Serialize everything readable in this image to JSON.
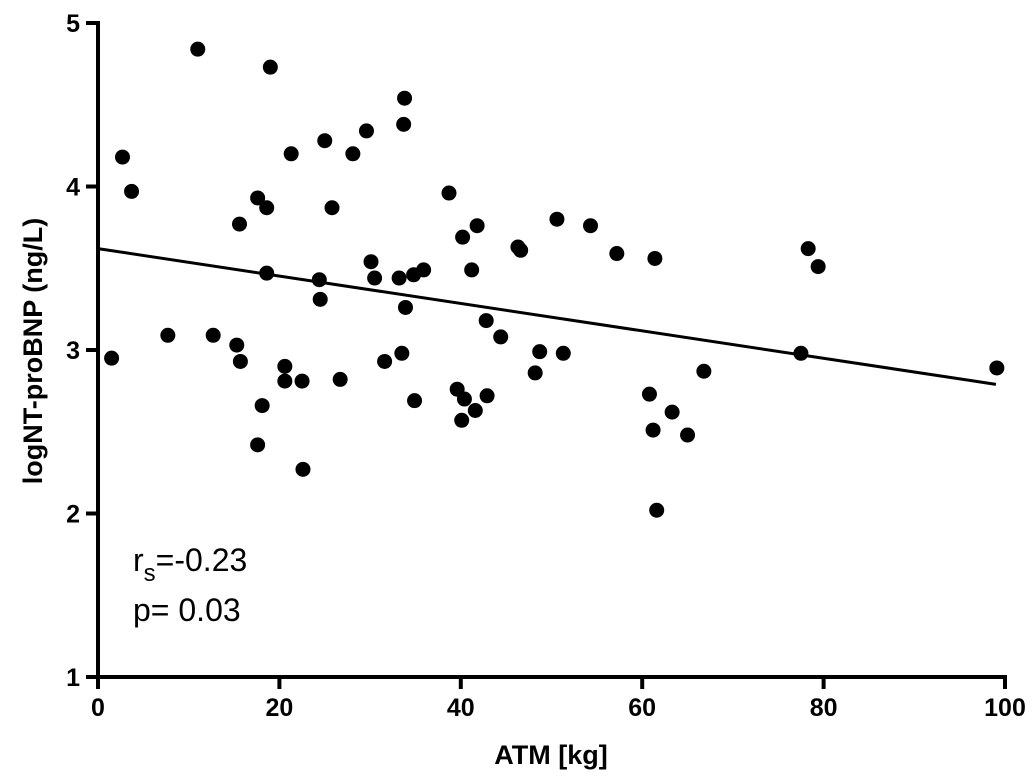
{
  "chart_data": {
    "type": "scatter",
    "xlabel": "ATM [kg]",
    "ylabel": "logNT-proBNP (ng/L)",
    "xlim": [
      0,
      100
    ],
    "ylim": [
      1,
      5
    ],
    "xticks": [
      0,
      20,
      40,
      60,
      80,
      100
    ],
    "yticks": [
      1,
      2,
      3,
      4,
      5
    ],
    "grid": false,
    "legend": "none",
    "point_color": "#000000",
    "points": [
      {
        "x": 1.5,
        "y": 2.95
      },
      {
        "x": 2.7,
        "y": 4.18
      },
      {
        "x": 3.7,
        "y": 3.97
      },
      {
        "x": 7.7,
        "y": 3.09
      },
      {
        "x": 11.0,
        "y": 4.84
      },
      {
        "x": 12.7,
        "y": 3.09
      },
      {
        "x": 15.3,
        "y": 3.03
      },
      {
        "x": 15.6,
        "y": 3.77
      },
      {
        "x": 15.7,
        "y": 2.93
      },
      {
        "x": 17.6,
        "y": 3.93
      },
      {
        "x": 17.6,
        "y": 2.42
      },
      {
        "x": 18.1,
        "y": 2.66
      },
      {
        "x": 18.6,
        "y": 3.87
      },
      {
        "x": 18.6,
        "y": 3.47
      },
      {
        "x": 19.0,
        "y": 4.73
      },
      {
        "x": 20.6,
        "y": 2.9
      },
      {
        "x": 20.6,
        "y": 2.81
      },
      {
        "x": 21.3,
        "y": 4.2
      },
      {
        "x": 22.5,
        "y": 2.81
      },
      {
        "x": 22.6,
        "y": 2.27
      },
      {
        "x": 24.4,
        "y": 3.43
      },
      {
        "x": 24.5,
        "y": 3.31
      },
      {
        "x": 25.0,
        "y": 4.28
      },
      {
        "x": 25.8,
        "y": 3.87
      },
      {
        "x": 26.7,
        "y": 2.82
      },
      {
        "x": 28.1,
        "y": 4.2
      },
      {
        "x": 29.6,
        "y": 4.34
      },
      {
        "x": 30.1,
        "y": 3.54
      },
      {
        "x": 30.5,
        "y": 3.44
      },
      {
        "x": 31.6,
        "y": 2.93
      },
      {
        "x": 33.2,
        "y": 3.44
      },
      {
        "x": 33.5,
        "y": 2.98
      },
      {
        "x": 33.7,
        "y": 4.38
      },
      {
        "x": 33.8,
        "y": 4.54
      },
      {
        "x": 33.9,
        "y": 3.26
      },
      {
        "x": 34.8,
        "y": 3.46
      },
      {
        "x": 34.9,
        "y": 2.69
      },
      {
        "x": 35.9,
        "y": 3.49
      },
      {
        "x": 38.7,
        "y": 3.96
      },
      {
        "x": 39.6,
        "y": 2.76
      },
      {
        "x": 40.1,
        "y": 2.57
      },
      {
        "x": 40.2,
        "y": 3.69
      },
      {
        "x": 40.4,
        "y": 2.7
      },
      {
        "x": 41.2,
        "y": 3.49
      },
      {
        "x": 41.6,
        "y": 2.63
      },
      {
        "x": 41.8,
        "y": 3.76
      },
      {
        "x": 42.8,
        "y": 3.18
      },
      {
        "x": 42.9,
        "y": 2.72
      },
      {
        "x": 44.4,
        "y": 3.08
      },
      {
        "x": 46.3,
        "y": 3.63
      },
      {
        "x": 46.6,
        "y": 3.61
      },
      {
        "x": 48.2,
        "y": 2.86
      },
      {
        "x": 48.7,
        "y": 2.99
      },
      {
        "x": 50.6,
        "y": 3.8
      },
      {
        "x": 51.3,
        "y": 2.98
      },
      {
        "x": 54.3,
        "y": 3.76
      },
      {
        "x": 57.2,
        "y": 3.59
      },
      {
        "x": 60.8,
        "y": 2.73
      },
      {
        "x": 61.2,
        "y": 2.51
      },
      {
        "x": 61.4,
        "y": 3.56
      },
      {
        "x": 61.6,
        "y": 2.02
      },
      {
        "x": 63.3,
        "y": 2.62
      },
      {
        "x": 65.0,
        "y": 2.48
      },
      {
        "x": 66.8,
        "y": 2.87
      },
      {
        "x": 77.5,
        "y": 2.98
      },
      {
        "x": 78.3,
        "y": 3.62
      },
      {
        "x": 79.4,
        "y": 3.51
      },
      {
        "x": 99.1,
        "y": 2.89
      }
    ],
    "regression_line": {
      "x": [
        0,
        99
      ],
      "y": [
        3.62,
        2.79
      ]
    },
    "annotations": {
      "r_main": "r",
      "r_sub": "s",
      "r_value": "=-0.23",
      "p_text": "p= 0.03"
    }
  }
}
